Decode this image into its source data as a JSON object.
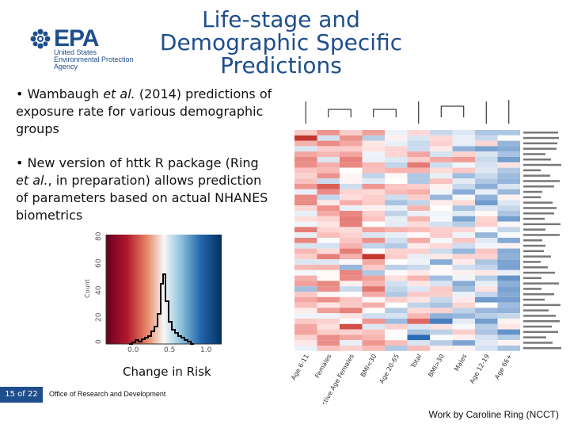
{
  "header": {
    "logo_text": "EPA",
    "logo_subtitle": "United States\nEnvironmental Protection\nAgency",
    "title": "Life-stage and Demographic Specific Predictions"
  },
  "bullets": [
    {
      "before": "• Wambaugh ",
      "italic": "et al.",
      "after": " (2014) predictions of exposure rate for various demographic groups"
    },
    {
      "before": "• New version of httk R package (Ring ",
      "italic": "et al.",
      "after": ", in preparation) allows prediction of parameters based on actual NHANES biometrics"
    }
  ],
  "histogram": {
    "label": "Change in Risk",
    "y_ticks": [
      "0",
      "20",
      "40",
      "60",
      "80"
    ],
    "x_ticks": [
      "0.0",
      "0.5",
      "1.0"
    ],
    "y_axis_label": "Count"
  },
  "heatmap": {
    "columns": [
      "Age 6-11",
      "Age 12-19",
      "Age 20-65",
      "Age 66+",
      "Females",
      "Males",
      "Total",
      "Reproductive Age Females",
      "BMI<30",
      "BMI>30"
    ],
    "rows": 41
  },
  "footer": {
    "page": "15 of 22",
    "office": "Office of Research and Development"
  },
  "credit": "Work by Caroline Ring (NCCT)"
}
